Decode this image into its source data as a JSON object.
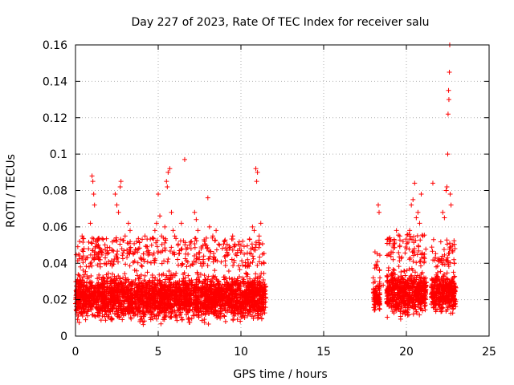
{
  "chart_data": {
    "type": "scatter",
    "title": "Day 227 of 2023, Rate Of TEC Index for receiver salu",
    "xlabel": "GPS time / hours",
    "ylabel": "ROTI / TECUs",
    "xlim": [
      0,
      25
    ],
    "ylim": [
      0,
      0.16
    ],
    "x_ticks": [
      0,
      5,
      10,
      15,
      20,
      25
    ],
    "x_tick_labels": [
      "0",
      "5",
      "10",
      "15",
      "20",
      "25"
    ],
    "y_ticks": [
      0,
      0.02,
      0.04,
      0.06,
      0.08,
      0.1,
      0.12,
      0.14,
      0.16
    ],
    "y_tick_labels": [
      "0",
      "0.02",
      "0.04",
      "0.06",
      "0.08",
      "0.1",
      "0.12",
      "0.14",
      "0.16"
    ],
    "grid": true,
    "marker": "+",
    "color": "#ff0000",
    "series": [
      {
        "name": "ROTI",
        "points": [
          [
            0.1,
            0.012
          ],
          [
            0.2,
            0.045
          ],
          [
            0.25,
            0.052
          ],
          [
            0.3,
            0.038
          ],
          [
            0.4,
            0.055
          ],
          [
            0.5,
            0.028
          ],
          [
            0.6,
            0.042
          ],
          [
            0.7,
            0.033
          ],
          [
            0.9,
            0.062
          ],
          [
            1.0,
            0.088
          ],
          [
            1.05,
            0.085
          ],
          [
            1.1,
            0.078
          ],
          [
            1.15,
            0.072
          ],
          [
            1.2,
            0.052
          ],
          [
            1.3,
            0.045
          ],
          [
            1.5,
            0.038
          ],
          [
            1.8,
            0.043
          ],
          [
            2.0,
            0.041
          ],
          [
            2.2,
            0.047
          ],
          [
            2.4,
            0.078
          ],
          [
            2.5,
            0.072
          ],
          [
            2.6,
            0.068
          ],
          [
            2.7,
            0.082
          ],
          [
            2.75,
            0.085
          ],
          [
            2.8,
            0.048
          ],
          [
            3.0,
            0.055
          ],
          [
            3.2,
            0.062
          ],
          [
            3.3,
            0.058
          ],
          [
            3.5,
            0.045
          ],
          [
            3.7,
            0.052
          ],
          [
            3.8,
            0.048
          ],
          [
            4.0,
            0.042
          ],
          [
            4.2,
            0.055
          ],
          [
            4.4,
            0.047
          ],
          [
            4.6,
            0.05
          ],
          [
            4.8,
            0.058
          ],
          [
            4.9,
            0.062
          ],
          [
            5.0,
            0.078
          ],
          [
            5.1,
            0.066
          ],
          [
            5.2,
            0.055
          ],
          [
            5.4,
            0.06
          ],
          [
            5.5,
            0.085
          ],
          [
            5.55,
            0.082
          ],
          [
            5.6,
            0.09
          ],
          [
            5.7,
            0.092
          ],
          [
            5.8,
            0.068
          ],
          [
            5.9,
            0.058
          ],
          [
            6.0,
            0.055
          ],
          [
            6.2,
            0.05
          ],
          [
            6.4,
            0.062
          ],
          [
            6.6,
            0.097
          ],
          [
            6.8,
            0.045
          ],
          [
            7.0,
            0.052
          ],
          [
            7.2,
            0.068
          ],
          [
            7.3,
            0.064
          ],
          [
            7.4,
            0.058
          ],
          [
            7.6,
            0.048
          ],
          [
            7.8,
            0.052
          ],
          [
            8.0,
            0.076
          ],
          [
            8.1,
            0.06
          ],
          [
            8.3,
            0.055
          ],
          [
            8.5,
            0.058
          ],
          [
            8.7,
            0.05
          ],
          [
            9.0,
            0.052
          ],
          [
            9.3,
            0.048
          ],
          [
            9.5,
            0.055
          ],
          [
            9.8,
            0.047
          ],
          [
            10.0,
            0.05
          ],
          [
            10.2,
            0.045
          ],
          [
            10.4,
            0.042
          ],
          [
            10.6,
            0.048
          ],
          [
            10.7,
            0.06
          ],
          [
            10.8,
            0.058
          ],
          [
            10.9,
            0.092
          ],
          [
            10.95,
            0.085
          ],
          [
            11.0,
            0.09
          ],
          [
            11.1,
            0.055
          ],
          [
            11.2,
            0.062
          ],
          [
            11.3,
            0.045
          ],
          [
            11.4,
            0.04
          ],
          [
            18.0,
            0.032
          ],
          [
            18.1,
            0.03
          ],
          [
            18.2,
            0.025
          ],
          [
            18.3,
            0.072
          ],
          [
            18.35,
            0.068
          ],
          [
            18.4,
            0.032
          ],
          [
            18.6,
            0.028
          ],
          [
            19.0,
            0.045
          ],
          [
            19.2,
            0.042
          ],
          [
            19.4,
            0.058
          ],
          [
            19.6,
            0.055
          ],
          [
            19.8,
            0.052
          ],
          [
            20.0,
            0.048
          ],
          [
            20.2,
            0.058
          ],
          [
            20.3,
            0.072
          ],
          [
            20.4,
            0.075
          ],
          [
            20.5,
            0.084
          ],
          [
            20.6,
            0.065
          ],
          [
            20.7,
            0.068
          ],
          [
            20.8,
            0.062
          ],
          [
            20.9,
            0.078
          ],
          [
            21.0,
            0.055
          ],
          [
            21.1,
            0.045
          ],
          [
            21.6,
            0.084
          ],
          [
            21.8,
            0.038
          ],
          [
            22.0,
            0.042
          ],
          [
            22.2,
            0.068
          ],
          [
            22.3,
            0.065
          ],
          [
            22.4,
            0.08
          ],
          [
            22.45,
            0.082
          ],
          [
            22.5,
            0.1
          ],
          [
            22.52,
            0.122
          ],
          [
            22.55,
            0.135
          ],
          [
            22.57,
            0.13
          ],
          [
            22.6,
            0.145
          ],
          [
            22.62,
            0.16
          ],
          [
            22.65,
            0.078
          ],
          [
            22.7,
            0.072
          ],
          [
            22.8,
            0.05
          ],
          [
            22.9,
            0.04
          ]
        ],
        "dense_bands": [
          {
            "x_start": 0.0,
            "x_end": 11.5,
            "y_min": 0.005,
            "y_max": 0.038
          },
          {
            "x_start": 18.0,
            "x_end": 18.4,
            "y_min": 0.012,
            "y_max": 0.032
          },
          {
            "x_start": 18.8,
            "x_end": 21.2,
            "y_min": 0.008,
            "y_max": 0.04
          },
          {
            "x_start": 21.5,
            "x_end": 23.0,
            "y_min": 0.01,
            "y_max": 0.038
          }
        ]
      }
    ]
  }
}
